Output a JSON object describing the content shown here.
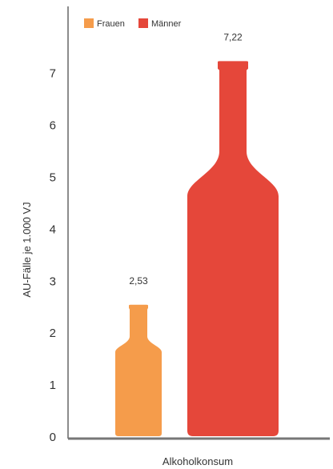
{
  "chart_data": {
    "type": "bar",
    "categories": [
      "Frauen",
      "Männer"
    ],
    "values": [
      2.53,
      7.22
    ],
    "value_labels": [
      "2,53",
      "7,22"
    ],
    "colors": [
      "#f59c4b",
      "#e5473a"
    ],
    "xlabel": "Alkoholkonsum",
    "ylabel": "AU-Fälle je 1.000 VJ",
    "ylim": [
      0,
      7.6
    ],
    "yticks": [
      0,
      1,
      2,
      3,
      4,
      5,
      6,
      7
    ],
    "grid": false,
    "legend": {
      "position": "top-left",
      "entries": [
        {
          "name": "Frauen",
          "color": "#f59c4b"
        },
        {
          "name": "Männer",
          "color": "#e5473a"
        }
      ]
    },
    "mark_shape": "bottle"
  }
}
